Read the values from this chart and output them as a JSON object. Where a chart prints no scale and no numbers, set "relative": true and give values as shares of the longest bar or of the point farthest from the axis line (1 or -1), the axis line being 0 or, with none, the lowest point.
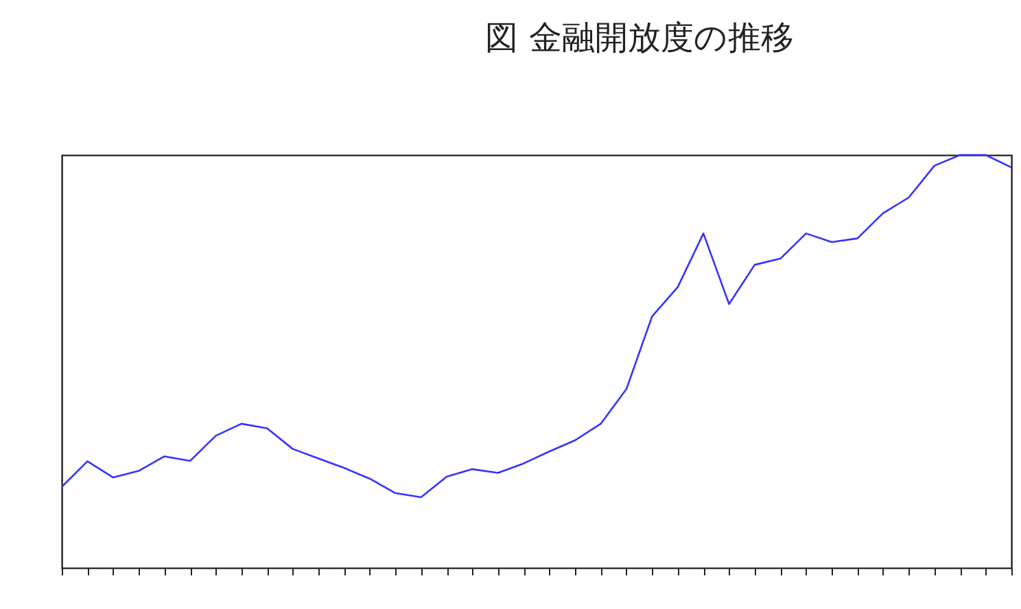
{
  "chart_data": {
    "type": "line",
    "title": "図 金融開放度の推移",
    "relative": true,
    "categories": [
      null,
      null,
      null,
      null,
      null,
      null,
      null,
      null,
      null,
      null,
      null,
      null,
      null,
      null,
      null,
      null,
      null,
      null,
      null,
      null,
      null,
      null,
      null,
      null,
      null,
      null,
      null,
      null,
      null,
      null,
      null,
      null,
      null,
      null,
      null,
      null,
      null,
      null
    ],
    "series": [
      {
        "color": "#3333ff",
        "values": [
          0.196,
          0.258,
          0.219,
          0.235,
          0.27,
          0.259,
          0.32,
          0.349,
          0.338,
          0.288,
          0.265,
          0.242,
          0.216,
          0.181,
          0.171,
          0.221,
          0.239,
          0.23,
          0.253,
          0.282,
          0.309,
          0.349,
          0.433,
          0.609,
          0.68,
          0.81,
          0.639,
          0.734,
          0.749,
          0.81,
          0.789,
          0.798,
          0.859,
          0.897,
          0.974,
          1,
          1,
          0.97
        ]
      }
    ]
  }
}
